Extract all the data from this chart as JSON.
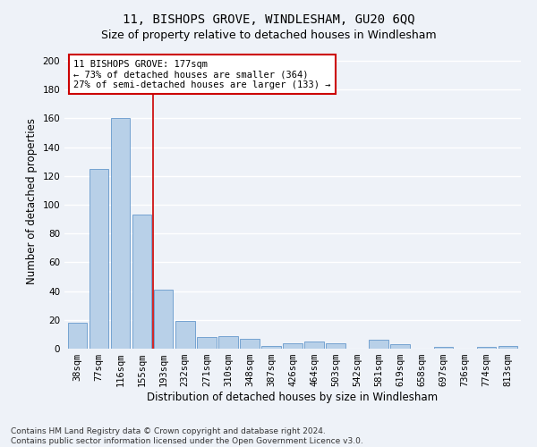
{
  "title1": "11, BISHOPS GROVE, WINDLESHAM, GU20 6QQ",
  "title2": "Size of property relative to detached houses in Windlesham",
  "xlabel": "Distribution of detached houses by size in Windlesham",
  "ylabel": "Number of detached properties",
  "categories": [
    "38sqm",
    "77sqm",
    "116sqm",
    "155sqm",
    "193sqm",
    "232sqm",
    "271sqm",
    "310sqm",
    "348sqm",
    "387sqm",
    "426sqm",
    "464sqm",
    "503sqm",
    "542sqm",
    "581sqm",
    "619sqm",
    "658sqm",
    "697sqm",
    "736sqm",
    "774sqm",
    "813sqm"
  ],
  "values": [
    18,
    125,
    160,
    93,
    41,
    19,
    8,
    9,
    7,
    2,
    4,
    5,
    4,
    0,
    6,
    3,
    0,
    1,
    0,
    1,
    2
  ],
  "bar_color": "#b8d0e8",
  "bar_edge_color": "#6699cc",
  "vline_color": "#cc0000",
  "annotation_text": "11 BISHOPS GROVE: 177sqm\n← 73% of detached houses are smaller (364)\n27% of semi-detached houses are larger (133) →",
  "annotation_box_color": "#ffffff",
  "annotation_box_edge": "#cc0000",
  "ylim": [
    0,
    205
  ],
  "yticks": [
    0,
    20,
    40,
    60,
    80,
    100,
    120,
    140,
    160,
    180,
    200
  ],
  "footnote": "Contains HM Land Registry data © Crown copyright and database right 2024.\nContains public sector information licensed under the Open Government Licence v3.0.",
  "bg_color": "#eef2f8",
  "grid_color": "#ffffff",
  "title1_fontsize": 10,
  "title2_fontsize": 9,
  "axis_label_fontsize": 8.5,
  "tick_fontsize": 7.5,
  "footnote_fontsize": 6.5
}
